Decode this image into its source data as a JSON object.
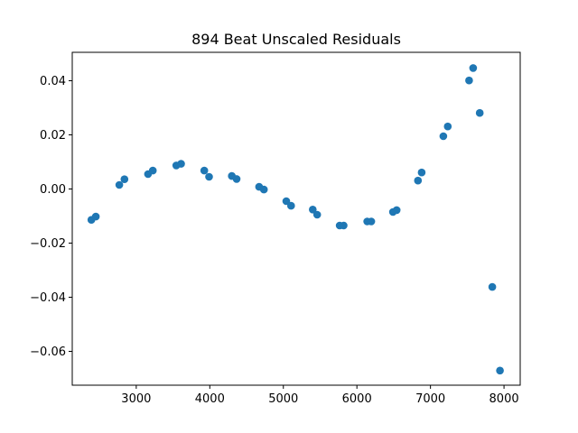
{
  "chart_data": {
    "type": "scatter",
    "title": "894 Beat Unscaled Residuals",
    "xlabel": "",
    "ylabel": "",
    "xlim": [
      2130,
      8220
    ],
    "ylim": [
      -0.0725,
      0.0505
    ],
    "xticks": [
      3000,
      4000,
      5000,
      6000,
      7000,
      8000
    ],
    "xtick_labels": [
      "3000",
      "4000",
      "5000",
      "6000",
      "7000",
      "8000"
    ],
    "yticks": [
      -0.06,
      -0.04,
      -0.02,
      0.0,
      0.02,
      0.04
    ],
    "ytick_labels": [
      "−0.06",
      "−0.04",
      "−0.02",
      "0.00",
      "0.02",
      "0.04"
    ],
    "grid": false,
    "legend": "none",
    "marker_color": "#1f77b4",
    "x": [
      2390,
      2450,
      2770,
      2840,
      3160,
      3225,
      3545,
      3610,
      3925,
      3990,
      4300,
      4365,
      4670,
      4735,
      5040,
      5105,
      5400,
      5460,
      5765,
      5820,
      6140,
      6195,
      6490,
      6540,
      6830,
      6880,
      7175,
      7235,
      7525,
      7580,
      7670,
      7840,
      7945
    ],
    "y": [
      -0.0114,
      -0.0102,
      0.0015,
      0.0036,
      0.0055,
      0.0068,
      0.0087,
      0.0093,
      0.0068,
      0.0045,
      0.0048,
      0.0037,
      0.0008,
      -0.0002,
      -0.0045,
      -0.0062,
      -0.0076,
      -0.0095,
      -0.0135,
      -0.0135,
      -0.012,
      -0.012,
      -0.0085,
      -0.0078,
      0.0031,
      0.0061,
      0.0195,
      0.0231,
      0.0401,
      0.0447,
      0.0281,
      -0.0362,
      -0.0671
    ]
  }
}
